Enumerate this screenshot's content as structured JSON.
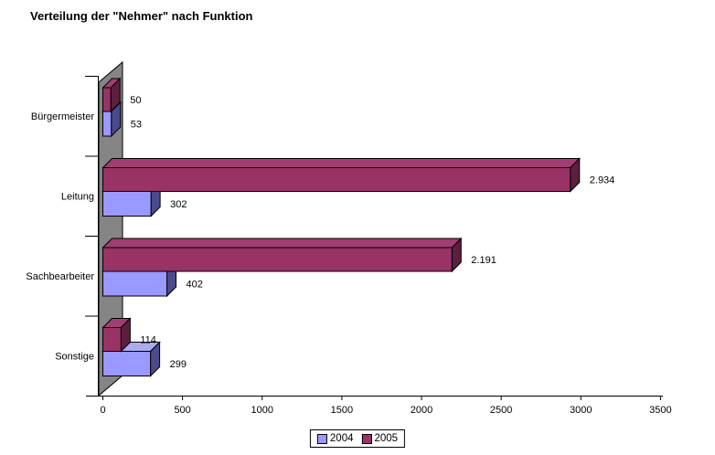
{
  "title": "Verteilung der \"Nehmer\" nach Funktion",
  "chart_data": {
    "type": "bar",
    "orientation": "horizontal",
    "title": "Verteilung der \"Nehmer\" nach Funktion",
    "categories": [
      "Bürgermeister",
      "Leitung",
      "Sachbearbeiter",
      "Sonstige"
    ],
    "series": [
      {
        "name": "2004",
        "color": "#9999FF",
        "color_top": "#ABABF0",
        "color_side": "#4A4A8C",
        "values": [
          53,
          302,
          402,
          299
        ],
        "labels": [
          "53",
          "302",
          "402",
          "299"
        ]
      },
      {
        "name": "2005",
        "color": "#993366",
        "color_top": "#A13D72",
        "color_side": "#5C1F3E",
        "values": [
          50,
          2934,
          2191,
          114
        ],
        "labels": [
          "50",
          "2.934",
          "2.191",
          "114"
        ]
      }
    ],
    "xlabel": "",
    "ylabel": "",
    "xlim": [
      0,
      3500
    ],
    "xticks": [
      0,
      500,
      1000,
      1500,
      2000,
      2500,
      3000,
      3500
    ],
    "xtick_labels": [
      "0",
      "500",
      "1000",
      "1500",
      "2000",
      "2500",
      "3000",
      "3500"
    ],
    "grid": false,
    "legend_position": "bottom",
    "wall_color": "#858585",
    "axis_color": "#000000",
    "background_color": "#FFFFFF"
  }
}
